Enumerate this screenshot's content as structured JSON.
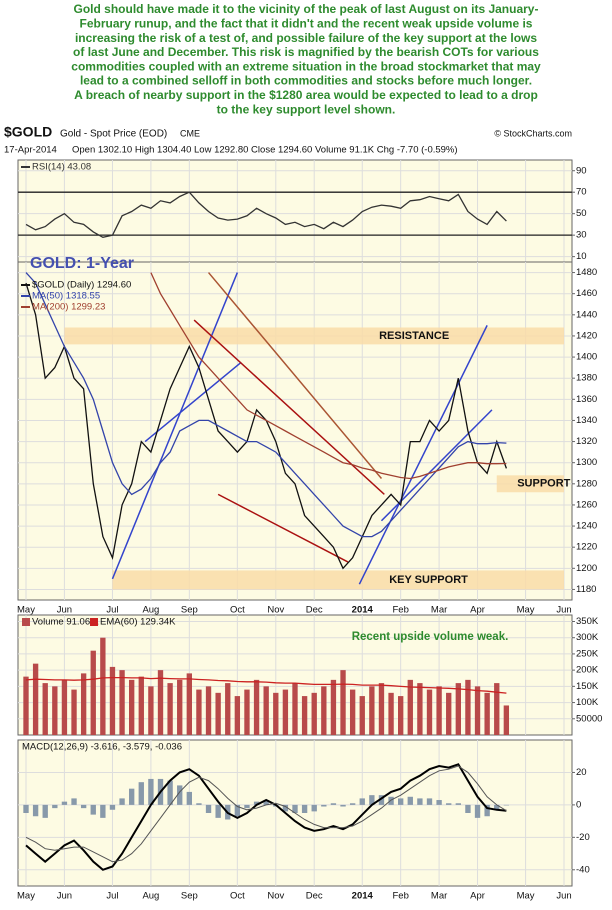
{
  "annotation": [
    "Gold should have made it to the vicinity of the peak of last August on its January-",
    "February runup, and the fact that it didn't and the recent weak upside volume is",
    "increasing the risk of a test of, and possible failure of the key support at the lows",
    "of last June and December. This risk is magnified by the bearish COTs for various",
    "commodities coupled with an extreme situation in the broad stockmarket that may",
    "lead to a combined selloff in both commodities and stocks before much longer.",
    "A breach of nearby support in the $1280 area would be expected to lead to a drop",
    "to the key support level shown."
  ],
  "header": {
    "symbol": "$GOLD",
    "name": "Gold - Spot Price (EOD)",
    "exchange": "CME",
    "source": "© StockCharts.com",
    "date": "17-Apr-2014",
    "quote": "Open 1302.10 High 1304.40 Low 1292.80 Close 1294.60 Volume 91.1K Chg -7.70 (-0.59%)"
  },
  "chart_data": [
    {
      "type": "line",
      "ylim": [
        5,
        100
      ],
      "yticks": [
        90,
        70,
        50,
        30,
        10
      ],
      "ref_lines": [
        70,
        30
      ],
      "grid": true,
      "series": [
        {
          "name": "RSI(14) 43.08",
          "color": "#333333",
          "values": [
            40,
            35,
            38,
            45,
            50,
            42,
            40,
            33,
            28,
            30,
            48,
            52,
            58,
            55,
            62,
            60,
            66,
            70,
            60,
            52,
            46,
            44,
            45,
            48,
            55,
            50,
            46,
            40,
            42,
            38,
            40,
            36,
            42,
            38,
            44,
            52,
            56,
            58,
            57,
            55,
            62,
            63,
            66,
            64,
            62,
            68,
            52,
            45,
            40,
            52,
            43.08,
            null,
            null,
            null,
            null,
            null,
            null
          ]
        }
      ]
    },
    {
      "type": "line",
      "title": "GOLD: 1-Year",
      "ylim": [
        1170,
        1490
      ],
      "grid": true,
      "yticks": [
        1180,
        1200,
        1220,
        1240,
        1260,
        1280,
        1300,
        1320,
        1340,
        1360,
        1380,
        1400,
        1420,
        1440,
        1460,
        1480
      ],
      "categories": [
        "May",
        null,
        null,
        null,
        "Jun",
        null,
        null,
        null,
        null,
        "Jul",
        null,
        null,
        null,
        "Aug",
        null,
        null,
        null,
        "Sep",
        null,
        null,
        null,
        null,
        "Oct",
        null,
        null,
        null,
        "Nov",
        null,
        null,
        null,
        "Dec",
        null,
        null,
        null,
        null,
        "2014",
        null,
        null,
        null,
        "Feb",
        null,
        null,
        null,
        "Mar",
        null,
        null,
        null,
        "Apr",
        null,
        null,
        null,
        null,
        "May",
        null,
        null,
        null,
        "Jun"
      ],
      "bands": [
        {
          "label": "RESISTANCE",
          "color": "#f9dca8",
          "x": [
            4,
            56
          ],
          "y": [
            1412,
            1428
          ]
        },
        {
          "label": "SUPPORT",
          "color": "#f9dca8",
          "x": [
            49,
            56
          ],
          "y": [
            1272,
            1288
          ]
        },
        {
          "label": "KEY SUPPORT",
          "color": "#f9dca8",
          "x": [
            9,
            56
          ],
          "y": [
            1180,
            1198
          ]
        }
      ],
      "trendlines": [
        {
          "color": "#3344cc",
          "x": [
            9,
            22
          ],
          "y": [
            1190,
            1480
          ]
        },
        {
          "color": "#3344cc",
          "x": [
            12.4,
            22.4
          ],
          "y": [
            1320,
            1395
          ]
        },
        {
          "color": "#aa1111",
          "x": [
            17.5,
            37.3
          ],
          "y": [
            1435,
            1270
          ]
        },
        {
          "color": "#aa1111",
          "x": [
            20,
            33.5
          ],
          "y": [
            1270,
            1206
          ]
        },
        {
          "color": "#aa5533",
          "x": [
            19,
            37
          ],
          "y": [
            1480,
            1285
          ]
        },
        {
          "color": "#3344cc",
          "x": [
            34.7,
            48
          ],
          "y": [
            1185,
            1430
          ]
        },
        {
          "color": "#3344cc",
          "x": [
            37,
            48.5
          ],
          "y": [
            1245,
            1350
          ]
        }
      ],
      "series": [
        {
          "name": "$GOLD (Daily) 1294.60",
          "color": "#111111",
          "values": [
            1470,
            1440,
            1380,
            1390,
            1410,
            1380,
            1370,
            1280,
            1230,
            1210,
            1260,
            1280,
            1320,
            1310,
            1340,
            1370,
            1390,
            1410,
            1390,
            1360,
            1330,
            1320,
            1310,
            1320,
            1350,
            1340,
            1320,
            1290,
            1280,
            1250,
            1240,
            1230,
            1220,
            1200,
            1210,
            1230,
            1250,
            1260,
            1270,
            1260,
            1320,
            1320,
            1340,
            1330,
            1340,
            1380,
            1330,
            1300,
            1290,
            1320,
            1294.6,
            null,
            null,
            null,
            null,
            null,
            null
          ]
        },
        {
          "name": "MA(50) 1318.55",
          "color": "#3344aa",
          "values": [
            1480,
            1470,
            1450,
            1430,
            1410,
            1395,
            1380,
            1360,
            1330,
            1300,
            1280,
            1270,
            1275,
            1285,
            1300,
            1310,
            1330,
            1335,
            1340,
            1340,
            1335,
            1330,
            1325,
            1320,
            1320,
            1315,
            1310,
            1300,
            1290,
            1280,
            1270,
            1260,
            1250,
            1240,
            1235,
            1230,
            1230,
            1235,
            1245,
            1255,
            1265,
            1275,
            1285,
            1295,
            1305,
            1315,
            1320,
            1318,
            1318,
            1319,
            1318.55,
            null,
            null,
            null,
            null,
            null,
            null
          ]
        },
        {
          "name": "MA(200) 1299.23",
          "color": "#a04030",
          "values": [
            null,
            null,
            null,
            null,
            null,
            null,
            null,
            null,
            null,
            null,
            null,
            null,
            null,
            1480,
            1460,
            1445,
            1430,
            1415,
            1400,
            1390,
            1380,
            1370,
            1360,
            1350,
            1345,
            1340,
            1335,
            1330,
            1325,
            1320,
            1315,
            1310,
            1305,
            1300,
            1298,
            1295,
            1293,
            1290,
            1288,
            1286,
            1285,
            1287,
            1290,
            1293,
            1296,
            1298,
            1300,
            1300,
            1299,
            1299,
            1299.23,
            null,
            null,
            null,
            null,
            null,
            null
          ]
        }
      ]
    },
    {
      "type": "bar",
      "ylim": [
        0,
        370000
      ],
      "grid": true,
      "annotation": "Recent upside volume weak.",
      "yticks": [
        {
          "value": 350000,
          "label": "350K"
        },
        {
          "value": 300000,
          "label": "300K"
        },
        {
          "value": 250000,
          "label": "250K"
        },
        {
          "value": 200000,
          "label": "200K"
        },
        {
          "value": 150000,
          "label": "150K"
        },
        {
          "value": 100000,
          "label": "100K"
        },
        50000
      ],
      "series": [
        {
          "name": "Volume 91.06K,",
          "type": "bar",
          "color": "#b84a4a",
          "values": [
            180000,
            220000,
            160000,
            150000,
            170000,
            140000,
            190000,
            260000,
            300000,
            210000,
            200000,
            170000,
            180000,
            150000,
            200000,
            160000,
            170000,
            190000,
            140000,
            150000,
            130000,
            160000,
            120000,
            140000,
            170000,
            150000,
            130000,
            140000,
            160000,
            120000,
            130000,
            150000,
            170000,
            200000,
            140000,
            120000,
            150000,
            160000,
            130000,
            120000,
            170000,
            160000,
            140000,
            150000,
            130000,
            160000,
            170000,
            150000,
            130000,
            160000,
            91060,
            null,
            null,
            null,
            null,
            null,
            null
          ]
        },
        {
          "name": "EMA(60) 129.34K",
          "type": "line",
          "color": "#cc2222",
          "values": [
            170000,
            172000,
            171000,
            170000,
            170000,
            169000,
            170000,
            172000,
            176000,
            177000,
            177000,
            176000,
            176000,
            174000,
            175000,
            174000,
            173000,
            173000,
            171000,
            170000,
            168000,
            167000,
            165000,
            164000,
            164000,
            163000,
            161000,
            160000,
            160000,
            158000,
            156000,
            156000,
            156000,
            157000,
            156000,
            154000,
            154000,
            154000,
            152000,
            150000,
            148000,
            147000,
            146000,
            145000,
            144000,
            142000,
            140000,
            137000,
            135000,
            132000,
            129340,
            null,
            null,
            null,
            null,
            null,
            null
          ]
        }
      ]
    },
    {
      "type": "line",
      "ylim": [
        -50,
        40
      ],
      "yticks": [
        20,
        0,
        -20,
        -40
      ],
      "grid": true,
      "legend": "MACD(12,26,9) -3.616, -3.579, -0.036",
      "categories": [
        "May",
        null,
        null,
        null,
        "Jun",
        null,
        null,
        null,
        null,
        "Jul",
        null,
        null,
        null,
        "Aug",
        null,
        null,
        null,
        "Sep",
        null,
        null,
        null,
        null,
        "Oct",
        null,
        null,
        null,
        "Nov",
        null,
        null,
        null,
        "Dec",
        null,
        null,
        null,
        null,
        "2014",
        null,
        null,
        null,
        "Feb",
        null,
        null,
        null,
        "Mar",
        null,
        null,
        null,
        "Apr",
        null,
        null,
        null,
        null,
        "May",
        null,
        null,
        null,
        "Jun"
      ],
      "series": [
        {
          "type": "bar",
          "color": "#8899aa",
          "values": [
            -5,
            -7,
            -8,
            -2,
            2,
            4,
            -2,
            -6,
            -8,
            -3,
            4,
            10,
            14,
            16,
            16,
            15,
            12,
            8,
            1,
            -5,
            -8,
            -9,
            -7,
            -2,
            2,
            3,
            -1,
            -4,
            -5,
            -5,
            -4,
            -1,
            1,
            -1,
            1,
            4,
            6,
            6,
            5,
            4,
            5,
            4,
            4,
            3,
            1,
            1,
            -5,
            -8,
            -7,
            -3,
            -0.036,
            null,
            null,
            null,
            null,
            null,
            null
          ]
        },
        {
          "type": "line",
          "color": "#000000",
          "width": 2,
          "values": [
            -25,
            -30,
            -35,
            -30,
            -25,
            -22,
            -28,
            -35,
            -40,
            -38,
            -30,
            -20,
            -10,
            0,
            8,
            15,
            20,
            22,
            18,
            10,
            2,
            -5,
            -8,
            -5,
            0,
            3,
            0,
            -5,
            -10,
            -14,
            -16,
            -15,
            -13,
            -15,
            -12,
            -6,
            0,
            4,
            8,
            10,
            15,
            18,
            22,
            24,
            23,
            25,
            15,
            5,
            -2,
            -3,
            -3.616,
            null,
            null,
            null,
            null,
            null,
            null
          ]
        },
        {
          "type": "line",
          "color": "#555555",
          "width": 1,
          "values": [
            -20,
            -23,
            -27,
            -28,
            -27,
            -26,
            -26,
            -29,
            -32,
            -35,
            -34,
            -30,
            -24,
            -16,
            -8,
            0,
            8,
            14,
            17,
            15,
            10,
            4,
            -1,
            -3,
            -2,
            0,
            1,
            -1,
            -5,
            -9,
            -12,
            -14,
            -14,
            -14,
            -13,
            -10,
            -6,
            -2,
            3,
            6,
            10,
            14,
            18,
            21,
            22,
            24,
            20,
            13,
            5,
            0,
            -3.579,
            null,
            null,
            null,
            null,
            null,
            null
          ]
        }
      ]
    }
  ]
}
